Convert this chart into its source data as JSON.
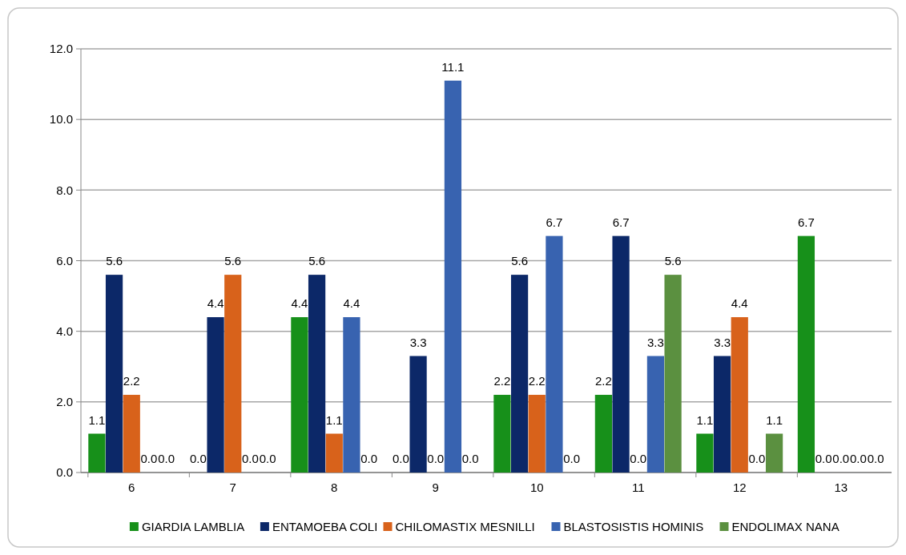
{
  "chart_data": {
    "type": "bar",
    "categories": [
      "6",
      "7",
      "8",
      "9",
      "10",
      "11",
      "12",
      "13"
    ],
    "series": [
      {
        "name": "GIARDIA LAMBLIA",
        "color": "#17901a",
        "values": [
          1.1,
          0.0,
          4.4,
          0.0,
          2.2,
          2.2,
          1.1,
          6.7
        ],
        "value_labels": [
          "1.1",
          "0.0",
          "4.4",
          "0.0",
          "2.2",
          "2.2",
          "1.1",
          "6.7"
        ]
      },
      {
        "name": "ENTAMOEBA COLI",
        "color": "#0c2868",
        "values": [
          5.6,
          4.4,
          5.6,
          3.3,
          5.6,
          6.7,
          3.3,
          0.0
        ],
        "value_labels": [
          "5.6",
          "4.4",
          "5.6",
          "3.3",
          "5.6",
          "6.7",
          "3.3",
          "0.0"
        ]
      },
      {
        "name": "CHILOMASTIX MESNILLI",
        "color": "#d8621b",
        "values": [
          2.2,
          5.6,
          1.1,
          0.0,
          2.2,
          0.0,
          4.4,
          0.0
        ],
        "value_labels": [
          "2.2",
          "5.6",
          "1.1",
          "0.0",
          "2.2",
          "0.0",
          "4.4",
          "0.0"
        ]
      },
      {
        "name": "BLASTOSISTIS HOMINIS",
        "color": "#3863b0",
        "values": [
          0.0,
          0.0,
          4.4,
          11.1,
          6.7,
          3.3,
          0.0,
          0.0
        ],
        "value_labels": [
          "0.0",
          "0.0",
          "4.4",
          "11.1",
          "6.7",
          "3.3",
          "0.0",
          "0.0"
        ]
      },
      {
        "name": "ENDOLIMAX NANA",
        "color": "#5b9040",
        "values": [
          0.0,
          0.0,
          0.0,
          0.0,
          0.0,
          5.6,
          1.1,
          0.0
        ],
        "value_labels": [
          "0.0",
          "0.0",
          "0.0",
          "0.0",
          "0.0",
          "5.6",
          "1.1",
          "0.0"
        ]
      }
    ],
    "ylim": [
      0,
      12
    ],
    "yticks": [
      {
        "value": 0,
        "label": "0.0"
      },
      {
        "value": 2,
        "label": "2.0"
      },
      {
        "value": 4,
        "label": "4.0"
      },
      {
        "value": 6,
        "label": "6.0"
      },
      {
        "value": 8,
        "label": "8.0"
      },
      {
        "value": 10,
        "label": "10.0"
      },
      {
        "value": 12,
        "label": "12.0"
      }
    ],
    "grid": "y",
    "legend": "bottom"
  }
}
